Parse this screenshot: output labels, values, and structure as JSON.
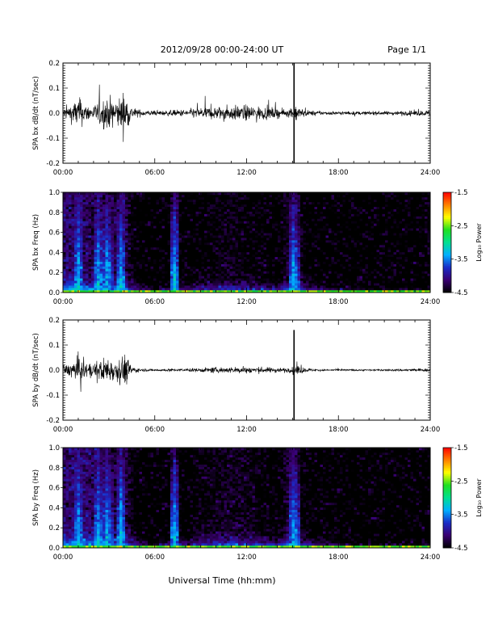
{
  "header": {
    "title": "2012/09/28  00:00-24:00 UT",
    "page_label": "Page 1/1"
  },
  "footer": {
    "xlabel": "Universal Time (hh:mm)"
  },
  "colors": {
    "trace": "#000000",
    "spectrogram_background": "#2a0a4a",
    "colormap": [
      "#000000",
      "#3a0072",
      "#1a2cc8",
      "#00b0ff",
      "#00e090",
      "#20e020",
      "#ffff00",
      "#ff8000",
      "#ff0000"
    ]
  },
  "chart_data": [
    {
      "type": "line",
      "ylabel": "SPA bx dB/dt (nT/sec)",
      "x_ticks": [
        "00:00",
        "06:00",
        "12:00",
        "18:00",
        "24:00"
      ],
      "y_ticks": [
        "0.2",
        "0.1",
        "0.0",
        "-0.1",
        "-0.2"
      ],
      "xlim_hours": [
        0,
        24
      ],
      "ylim": [
        -0.2,
        0.2
      ],
      "series": [
        {
          "hours": [
            0,
            0.5,
            1,
            1.5,
            2,
            2.5,
            3,
            3.5,
            4,
            4.5,
            5,
            6,
            7,
            8,
            9,
            10,
            11,
            12,
            13,
            14,
            14.5,
            15,
            15.2,
            15.5,
            16,
            17,
            18,
            19,
            20,
            21,
            22,
            23,
            24
          ],
          "envelope": [
            0.035,
            0.06,
            0.11,
            0.06,
            0.05,
            0.1,
            0.11,
            0.09,
            0.15,
            0.04,
            0.025,
            0.015,
            0.02,
            0.025,
            0.04,
            0.045,
            0.05,
            0.055,
            0.045,
            0.035,
            0.025,
            0.03,
            0.06,
            0.035,
            0.02,
            0.012,
            0.012,
            0.012,
            0.012,
            0.013,
            0.015,
            0.018,
            0.02
          ]
        }
      ],
      "annotations": [
        {
          "hour": 15.1,
          "label": "spike",
          "ymin": -0.2,
          "ymax": 0.2
        }
      ]
    },
    {
      "type": "heatmap",
      "ylabel": "SPA bx Freq (Hz)",
      "x_ticks": [
        "00:00",
        "06:00",
        "12:00",
        "18:00",
        "24:00"
      ],
      "y_ticks": [
        "1.0",
        "0.8",
        "0.6",
        "0.4",
        "0.2",
        "0.0"
      ],
      "xlim_hours": [
        0,
        24
      ],
      "ylim": [
        0,
        1.0
      ],
      "colorbar": {
        "label": "Log₁₀ Power",
        "ticks": [
          "-1.5",
          "-2.5",
          "-3.5",
          "-4.5"
        ],
        "range": [
          -4.5,
          -1.5
        ]
      },
      "bursts_hours": [
        1.0,
        2.3,
        2.9,
        3.8,
        7.3,
        15.1
      ],
      "intensity_hours": [
        0,
        1,
        2,
        3,
        4,
        5,
        6,
        7,
        8,
        9,
        10,
        11,
        12,
        13,
        14,
        15,
        16,
        17,
        18,
        19,
        20,
        21,
        22,
        23,
        24
      ],
      "low_freq_power": [
        -3.0,
        -2.9,
        -3.1,
        -3.1,
        -3.0,
        -3.7,
        -3.9,
        -3.7,
        -3.7,
        -3.5,
        -3.4,
        -3.3,
        -3.4,
        -3.5,
        -3.6,
        -3.0,
        -3.6,
        -3.7,
        -3.8,
        -3.9,
        -3.9,
        -4.0,
        -4.0,
        -4.0,
        -4.0
      ]
    },
    {
      "type": "line",
      "ylabel": "SPA by dB/dt (nT/sec)",
      "x_ticks": [
        "00:00",
        "06:00",
        "12:00",
        "18:00",
        "24:00"
      ],
      "y_ticks": [
        "0.2",
        "0.1",
        "0.0",
        "-0.1",
        "-0.2"
      ],
      "xlim_hours": [
        0,
        24
      ],
      "ylim": [
        -0.2,
        0.2
      ],
      "series": [
        {
          "hours": [
            0,
            0.5,
            1,
            1.5,
            2,
            2.5,
            3,
            3.5,
            4,
            4.5,
            5,
            6,
            7,
            8,
            9,
            10,
            11,
            12,
            13,
            14,
            14.5,
            15,
            15.2,
            15.5,
            16,
            17,
            18,
            19,
            20,
            21,
            22,
            23,
            24
          ],
          "envelope": [
            0.035,
            0.045,
            0.1,
            0.05,
            0.045,
            0.08,
            0.09,
            0.07,
            0.12,
            0.03,
            0.01,
            0.007,
            0.01,
            0.01,
            0.015,
            0.02,
            0.02,
            0.025,
            0.02,
            0.018,
            0.015,
            0.02,
            0.05,
            0.025,
            0.012,
            0.006,
            0.006,
            0.006,
            0.006,
            0.006,
            0.008,
            0.01,
            0.01
          ]
        }
      ],
      "annotations": [
        {
          "hour": 15.1,
          "label": "spike",
          "ymin": -0.2,
          "ymax": 0.16
        }
      ]
    },
    {
      "type": "heatmap",
      "ylabel": "SPA by Freq (Hz)",
      "x_ticks": [
        "00:00",
        "06:00",
        "12:00",
        "18:00",
        "24:00"
      ],
      "y_ticks": [
        "1.0",
        "0.8",
        "0.6",
        "0.4",
        "0.2",
        "0.0"
      ],
      "xlim_hours": [
        0,
        24
      ],
      "ylim": [
        0,
        1.0
      ],
      "colorbar": {
        "label": "Log₁₀ Power",
        "ticks": [
          "-1.5",
          "-2.5",
          "-3.5",
          "-4.5"
        ],
        "range": [
          -4.5,
          -1.5
        ]
      },
      "bursts_hours": [
        1.0,
        2.3,
        2.9,
        3.8,
        7.3,
        15.1
      ],
      "intensity_hours": [
        0,
        1,
        2,
        3,
        4,
        5,
        6,
        7,
        8,
        9,
        10,
        11,
        12,
        13,
        14,
        15,
        16,
        17,
        18,
        19,
        20,
        21,
        22,
        23,
        24
      ],
      "low_freq_power": [
        -3.0,
        -2.9,
        -3.0,
        -3.1,
        -3.0,
        -3.7,
        -3.9,
        -3.6,
        -3.6,
        -3.4,
        -3.3,
        -3.2,
        -3.3,
        -3.4,
        -3.5,
        -3.0,
        -3.6,
        -3.7,
        -3.8,
        -3.9,
        -3.9,
        -4.0,
        -4.0,
        -4.0,
        -4.0
      ]
    }
  ]
}
